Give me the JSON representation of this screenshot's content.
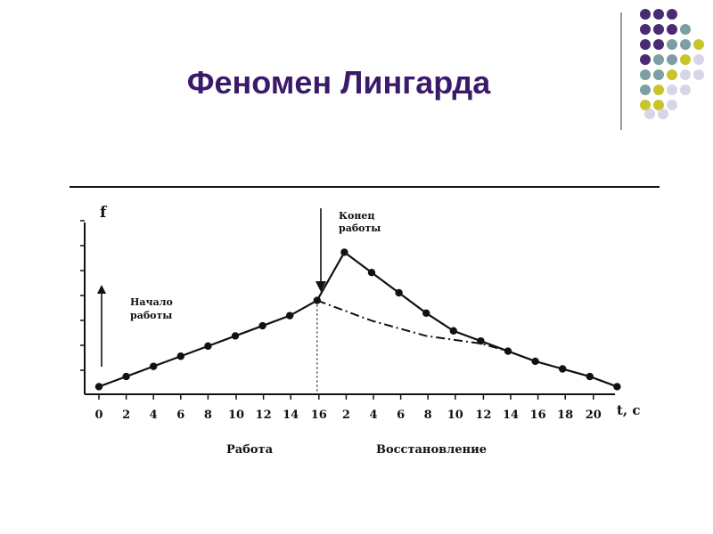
{
  "slide": {
    "title": "Феномен Лингарда",
    "colors": {
      "title": "#3b1a6b",
      "purple": "#4b2a74",
      "teal": "#7d9ea3",
      "olive": "#c8c42a",
      "lavender": "#d6d6e8"
    }
  },
  "chart_data": {
    "type": "line",
    "title": "",
    "ylabel": "f",
    "xlabel": "t, c",
    "segment_labels": [
      "Работа",
      "Восстановление"
    ],
    "annotations": {
      "start": "Начало работы",
      "end": "Конец работы"
    },
    "x_tick_labels": [
      "0",
      "2",
      "4",
      "6",
      "8",
      "10",
      "12",
      "14",
      "16",
      "2",
      "4",
      "6",
      "8",
      "10",
      "12",
      "14",
      "16",
      "18",
      "20"
    ],
    "x_axis_unit_label": "t, c",
    "grid": false,
    "series": [
      {
        "style": "solid-with-markers",
        "x_index": [
          0,
          1,
          2,
          3,
          4,
          5,
          6,
          7,
          8,
          9,
          10,
          11,
          12,
          13,
          14,
          15,
          16,
          17,
          18,
          19
        ],
        "values": [
          0.3,
          0.7,
          1.1,
          1.5,
          1.9,
          2.3,
          2.7,
          3.1,
          3.7,
          5.6,
          4.8,
          4.0,
          3.2,
          2.5,
          2.1,
          1.7,
          1.3,
          1.0,
          0.7,
          0.3
        ]
      },
      {
        "style": "dash-dot",
        "x_index": [
          8,
          10,
          12,
          14,
          15
        ],
        "values": [
          3.7,
          2.9,
          2.3,
          2.0,
          1.7
        ]
      }
    ],
    "work_end_marker_index": 8
  }
}
